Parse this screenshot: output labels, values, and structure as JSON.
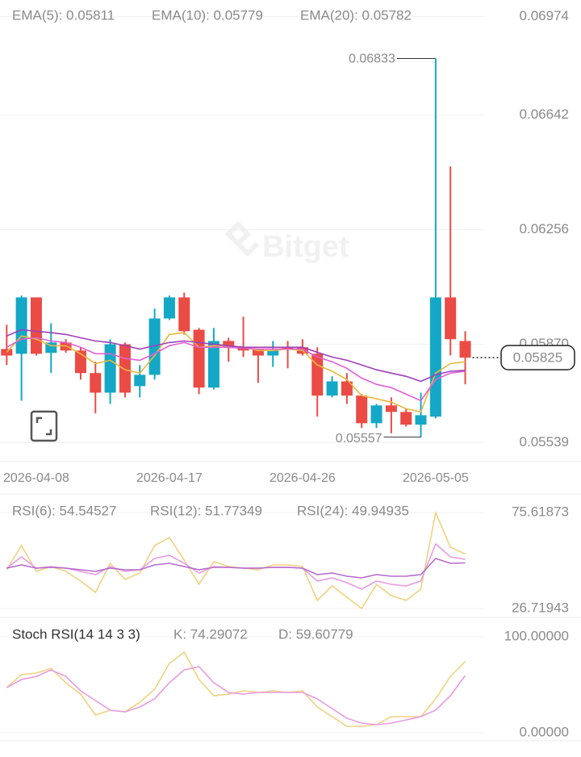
{
  "chart_data": [
    {
      "type": "candlestick",
      "categories": [
        null,
        null,
        "2026-04-08",
        null,
        null,
        null,
        null,
        null,
        null,
        null,
        null,
        "2026-04-17",
        null,
        null,
        null,
        null,
        null,
        null,
        null,
        null,
        "2026-04-26",
        null,
        null,
        null,
        null,
        null,
        null,
        null,
        null,
        "2026-05-05",
        null,
        null
      ],
      "open": [
        0.05854,
        0.05838,
        0.06028,
        0.05841,
        0.05876,
        0.05849,
        0.05773,
        0.05707,
        0.0587,
        0.05729,
        0.05767,
        0.05957,
        0.06028,
        0.05919,
        0.05724,
        0.05881,
        0.05857,
        0.05854,
        0.05832,
        0.0586,
        0.0586,
        0.05838,
        0.05697,
        0.05745,
        0.05697,
        0.05604,
        0.05664,
        0.05642,
        0.05599,
        0.05626,
        0.06028,
        0.05881
      ],
      "high": [
        0.05936,
        0.06034,
        0.06028,
        0.05941,
        0.05887,
        0.0586,
        0.05811,
        0.05887,
        0.05876,
        0.058,
        0.0599,
        0.06034,
        0.06044,
        0.05925,
        0.05925,
        0.05892,
        0.05963,
        0.05854,
        0.05881,
        0.05881,
        0.05887,
        0.0586,
        0.05762,
        0.05773,
        0.05702,
        0.05669,
        0.05691,
        0.05653,
        0.05707,
        0.06833,
        0.06469,
        0.05914
      ],
      "low": [
        0.058,
        0.0568,
        0.05832,
        0.05773,
        0.05841,
        0.05751,
        0.05637,
        0.05669,
        0.05691,
        0.05691,
        0.05751,
        0.05952,
        0.05903,
        0.05702,
        0.05718,
        0.05811,
        0.05827,
        0.0574,
        0.05794,
        0.05789,
        0.05832,
        0.05626,
        0.05691,
        0.05669,
        0.05588,
        0.05588,
        0.0557,
        0.05593,
        0.05557,
        0.0562,
        0.05832,
        0.05735
      ],
      "close": [
        0.05832,
        0.06028,
        0.05838,
        0.05876,
        0.05849,
        0.05773,
        0.05707,
        0.0587,
        0.05707,
        0.05767,
        0.05957,
        0.06028,
        0.05914,
        0.05724,
        0.05881,
        0.0586,
        0.05849,
        0.05832,
        0.05849,
        0.05854,
        0.05838,
        0.05697,
        0.05745,
        0.05697,
        0.05604,
        0.05664,
        0.05642,
        0.05599,
        0.05631,
        0.06028,
        0.05887,
        0.05825
      ],
      "up_color": "#14a8c6",
      "down_color": "#ea4b45",
      "series": [
        {
          "name": "EMA(5): 0.05811",
          "color": "#e9b93a",
          "values": [
            0.05843,
            0.05898,
            0.05887,
            0.05865,
            0.05865,
            0.05838,
            0.05805,
            0.05816,
            0.05784,
            0.05773,
            0.05832,
            0.05903,
            0.05909,
            0.0586,
            0.05865,
            0.05865,
            0.0586,
            0.05849,
            0.05849,
            0.05854,
            0.05849,
            0.058,
            0.05779,
            0.05751,
            0.05697,
            0.05686,
            0.05675,
            0.05653,
            0.05642,
            0.05773,
            0.05805,
            0.05811
          ]
        },
        {
          "name": "EMA(10): 0.05779",
          "color": "#e25fd3",
          "values": [
            0.0586,
            0.05887,
            0.05892,
            0.05881,
            0.05876,
            0.0586,
            0.05838,
            0.05838,
            0.05822,
            0.05816,
            0.05838,
            0.05865,
            0.05876,
            0.0586,
            0.0586,
            0.0586,
            0.05857,
            0.05854,
            0.05854,
            0.05854,
            0.05854,
            0.05827,
            0.05811,
            0.05789,
            0.05756,
            0.05735,
            0.05724,
            0.05702,
            0.0568,
            0.05751,
            0.05773,
            0.05779
          ]
        },
        {
          "name": "EMA(20): 0.05782",
          "color": "#a03fbb",
          "values": [
            0.05898,
            0.05919,
            0.05914,
            0.05909,
            0.05903,
            0.05892,
            0.05881,
            0.05876,
            0.05865,
            0.05854,
            0.05865,
            0.05876,
            0.05881,
            0.05876,
            0.0587,
            0.05865,
            0.0586,
            0.0586,
            0.0586,
            0.0586,
            0.0586,
            0.05843,
            0.05827,
            0.05816,
            0.058,
            0.05784,
            0.05773,
            0.05762,
            0.05745,
            0.05767,
            0.05779,
            0.05782
          ]
        }
      ],
      "ylim": [
        0.0548,
        0.0703
      ],
      "yticks": [
        0.06974,
        0.06642,
        0.06256,
        {
          "value": 0.0587,
          "label": "0.05870"
        },
        0.05539
      ],
      "grid": true,
      "watermark": "Bitget"
    },
    {
      "type": "line",
      "series": [
        {
          "name": "RSI(6): 54.54527",
          "color": "#f0d27e",
          "values": [
            46.45,
            58.77,
            45.62,
            48.09,
            45.62,
            40.69,
            34.94,
            49.73,
            41.52,
            44.8,
            58.77,
            62.88,
            51.38,
            39.05,
            50.56,
            48.09,
            47.27,
            46.45,
            48.91,
            48.91,
            48.09,
            30.83,
            38.23,
            32.48,
            26.72,
            39.05,
            33.3,
            30.83,
            36.58,
            75.6,
            57.95,
            54.55
          ]
        },
        {
          "name": "RSI(12): 51.77349",
          "color": "#e99be1",
          "values": [
            47.27,
            53.02,
            47.27,
            48.09,
            47.27,
            45.62,
            43.98,
            48.09,
            45.62,
            46.45,
            52.2,
            53.84,
            49.73,
            44.8,
            48.09,
            47.68,
            47.27,
            47.27,
            47.68,
            47.68,
            47.27,
            40.69,
            42.34,
            39.87,
            36.58,
            40.69,
            39.05,
            38.23,
            40.69,
            59.59,
            53.02,
            51.77
          ]
        },
        {
          "name": "RSI(24): 49.94935",
          "color": "#b56ccb",
          "values": [
            47.27,
            48.91,
            47.27,
            47.68,
            47.27,
            46.45,
            45.62,
            47.27,
            46.45,
            46.45,
            48.91,
            49.73,
            48.09,
            46.45,
            47.68,
            47.68,
            47.27,
            47.27,
            47.68,
            47.68,
            47.27,
            43.98,
            44.8,
            43.16,
            42.34,
            43.98,
            43.16,
            43.16,
            43.98,
            52.2,
            49.73,
            49.95
          ]
        }
      ],
      "ylim": [
        22.2,
        81.8
      ],
      "yticks": [
        75.61873,
        26.71943
      ],
      "grid": true
    },
    {
      "type": "line",
      "title": "Stoch RSI(14 14 3 3)",
      "series": [
        {
          "name": "K: 74.29072",
          "color": "#f0d27e",
          "values": [
            47.1,
            60.5,
            62.2,
            67.2,
            52.1,
            40.3,
            18.5,
            23.5,
            21.8,
            31.9,
            45.4,
            72.3,
            84.0,
            55.5,
            38.7,
            40.3,
            43.7,
            42.0,
            43.7,
            42.0,
            43.7,
            26.9,
            16.8,
            6.7,
            6.7,
            8.4,
            16.8,
            16.8,
            16.8,
            35.3,
            58.8,
            74.29
          ]
        },
        {
          "name": "D: 59.60779",
          "color": "#e99be1",
          "values": [
            47.1,
            55.5,
            58.8,
            65.5,
            58.8,
            43.7,
            33.6,
            23.5,
            21.8,
            26.9,
            35.3,
            52.1,
            65.5,
            68.9,
            52.1,
            42.0,
            40.3,
            42.0,
            42.0,
            42.0,
            42.0,
            35.3,
            25.2,
            15.1,
            10.1,
            8.4,
            10.1,
            13.4,
            16.8,
            23.5,
            38.7,
            59.61
          ]
        }
      ],
      "ylim": [
        -8.4,
        111.8
      ],
      "yticks": [
        {
          "value": 100,
          "label": "100.00000"
        },
        {
          "value": 0,
          "label": "0.00000"
        }
      ],
      "grid": true
    }
  ]
}
